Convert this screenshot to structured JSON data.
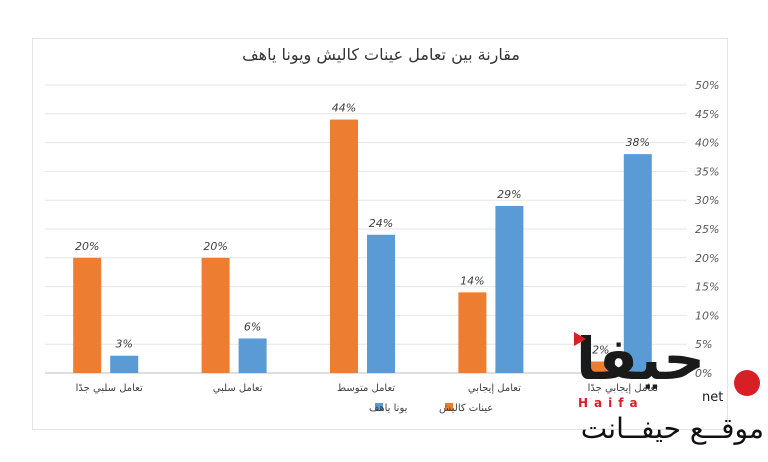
{
  "chart_data": {
    "type": "bar",
    "title": "مقارنة بين تعامل عينات كاليش ويونا ياهف",
    "categories": [
      "تعامل سلبي جدًا",
      "تعامل سلبي",
      "تعامل متوسط",
      "تعامل إيجابي",
      "تعامل إيجابي جدًا"
    ],
    "series": [
      {
        "name": "عينات كاليش",
        "values": [
          20,
          20,
          44,
          14,
          2
        ],
        "color": "#ed7d31"
      },
      {
        "name": "يونا ياهف",
        "values": [
          3,
          6,
          24,
          29,
          38
        ],
        "color": "#5b9bd5"
      }
    ],
    "y_ticks": [
      "0%",
      "5%",
      "10%",
      "15%",
      "20%",
      "25%",
      "30%",
      "35%",
      "40%",
      "45%",
      "50%"
    ],
    "ylim": [
      0,
      50
    ],
    "y_axis_side": "right",
    "grid": true,
    "legend_position": "bottom"
  },
  "watermark": {
    "wordmark": "حيفا",
    "latin": "Haifa",
    "net": "net",
    "arabic": "موقــع حيفــانت",
    "brand_color": "#d81f26"
  }
}
